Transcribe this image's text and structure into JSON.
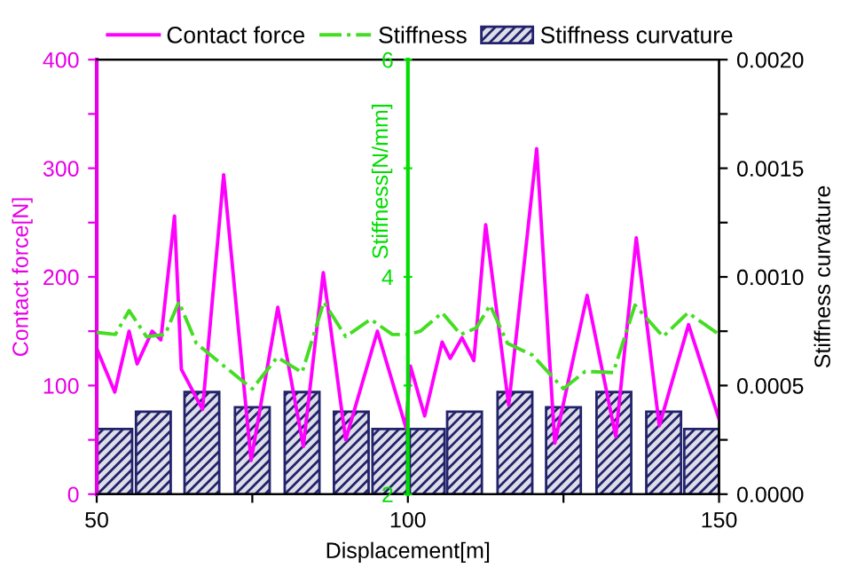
{
  "chart_data": {
    "type": "line",
    "xlabel": "Displacement[m]",
    "ylabel": "Contact force[N]",
    "y2label": "Stiffness curvature",
    "y3label": "Stiffness[N/mm]",
    "xlim": [
      50,
      150
    ],
    "xticks": [
      50,
      {
        "value": 75,
        "label": null
      },
      100,
      {
        "value": 125,
        "label": null
      },
      150
    ],
    "ylim": [
      0,
      400
    ],
    "yticks": [
      0,
      {
        "value": 50,
        "label": null
      },
      100,
      {
        "value": 150,
        "label": null
      },
      200,
      {
        "value": 250,
        "label": null
      },
      300,
      {
        "value": 350,
        "label": null
      },
      400
    ],
    "y2lim": [
      0,
      0.002
    ],
    "y2ticks": [
      {
        "value": 0,
        "label": "0.0000"
      },
      {
        "value": 0.00025,
        "label": null
      },
      {
        "value": 0.0005,
        "label": "0.0005"
      },
      {
        "value": 0.00075,
        "label": null
      },
      {
        "value": 0.001,
        "label": "0.0010"
      },
      {
        "value": 0.00125,
        "label": null
      },
      {
        "value": 0.0015,
        "label": "0.0015"
      },
      {
        "value": 0.00175,
        "label": null
      },
      {
        "value": 0.002,
        "label": "0.0020"
      }
    ],
    "y3lim": [
      2,
      6
    ],
    "y3ticks": [
      2,
      {
        "value": 3,
        "label": null
      },
      4,
      {
        "value": 5,
        "label": null
      },
      6
    ],
    "legend": "top",
    "grid": false,
    "series": [
      {
        "name": "Contact force",
        "axis": "y",
        "color": "#ff00ff",
        "line_style": "solid",
        "x": [
          50,
          52.9,
          55.2,
          56.5,
          58.9,
          60.3,
          62.5,
          63.6,
          67,
          70.4,
          74.8,
          79.1,
          83.2,
          86.4,
          90,
          95.1,
          99.7,
          100.4,
          102.7,
          105.5,
          106.8,
          108.7,
          110.6,
          112.5,
          116.2,
          120.7,
          123.6,
          128.8,
          133.4,
          136.7,
          140.4,
          145.1,
          150
        ],
        "values": [
          134,
          94,
          150,
          120,
          150,
          142,
          256,
          115,
          78,
          294,
          31,
          172,
          44,
          204,
          50,
          150,
          61,
          118,
          72,
          140,
          125,
          144,
          123,
          248,
          82,
          318,
          47,
          183,
          53,
          236,
          63,
          156,
          69
        ]
      },
      {
        "name": "Stiffness",
        "type": "line",
        "axis": "y3",
        "color": "#44dd22",
        "line_style": "dashdot",
        "x": [
          50,
          53,
          55.2,
          58,
          61,
          63.2,
          66,
          70,
          75,
          79,
          83,
          86.5,
          90,
          94,
          97.5,
          100,
          102,
          105.5,
          108.5,
          111,
          113.2,
          116,
          120,
          125,
          128.5,
          133,
          136.5,
          141,
          145,
          150
        ],
        "values": [
          3.49,
          3.47,
          3.69,
          3.45,
          3.47,
          3.77,
          3.39,
          3.2,
          2.97,
          3.26,
          3.12,
          3.77,
          3.45,
          3.61,
          3.47,
          3.47,
          3.5,
          3.67,
          3.47,
          3.53,
          3.74,
          3.39,
          3.28,
          2.97,
          3.13,
          3.12,
          3.74,
          3.45,
          3.67,
          3.47
        ]
      },
      {
        "name": "Stiffness curvature",
        "type": "bar",
        "axis": "y2",
        "color": "#23236b",
        "x": [
          52.9,
          59.1,
          66.9,
          75,
          83,
          90.9,
          97.1,
          103.1,
          109.1,
          117.2,
          125,
          133.1,
          141.1,
          147.2
        ],
        "values": [
          0.0003,
          0.00038,
          0.00047,
          0.0004,
          0.00047,
          0.00038,
          0.0003,
          0.0003,
          0.00038,
          0.00047,
          0.0004,
          0.00047,
          0.00038,
          0.0003
        ]
      }
    ]
  }
}
